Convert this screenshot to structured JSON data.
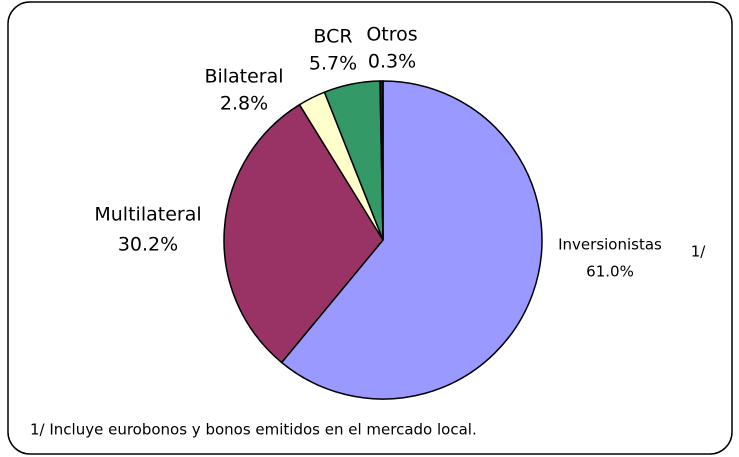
{
  "chart_data": {
    "type": "pie",
    "categories": [
      "Inversionistas",
      "Multilateral",
      "Bilateral",
      "BCR",
      "Otros"
    ],
    "values": [
      61.0,
      30.2,
      2.8,
      5.7,
      0.3
    ],
    "value_labels": [
      "61.0%",
      "30.2%",
      "2.8%",
      "5.7%",
      "0.3%"
    ],
    "colors": [
      "#9999ff",
      "#993366",
      "#ffffcc",
      "#339966",
      "#1a1a1a"
    ],
    "annotations": [
      "1/"
    ],
    "footnote": "1/ Incluye eurobonos y bonos emitidos en el mercado local."
  }
}
